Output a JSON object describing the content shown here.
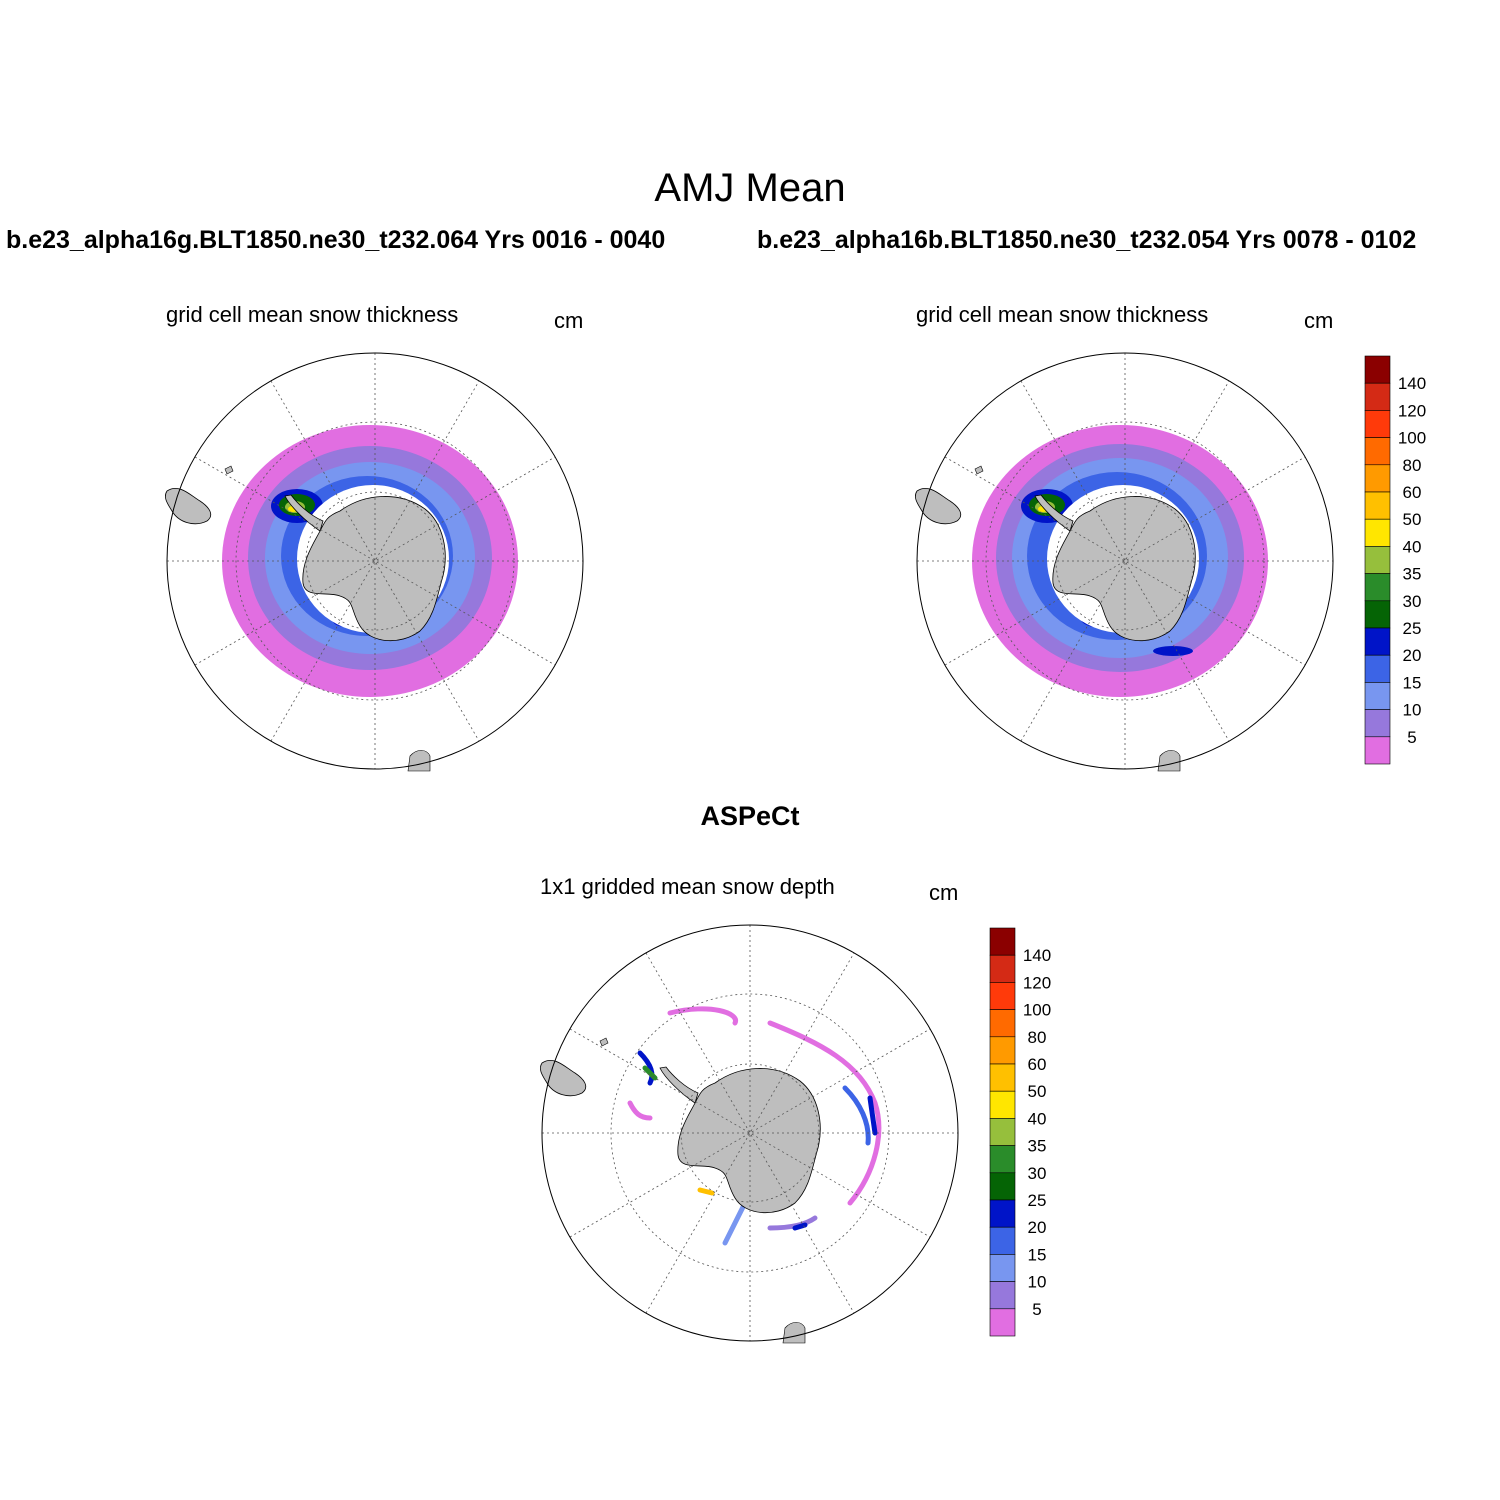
{
  "title": "AMJ Mean",
  "panels": [
    {
      "case": "b.e23_alpha16g.BLT1850.ne30_t232.064  Yrs 0016 - 0040",
      "title": "grid cell mean snow thickness",
      "units": "cm"
    },
    {
      "case": "b.e23_alpha16b.BLT1850.ne30_t232.054  Yrs 0078 - 0102",
      "title": "grid cell mean snow thickness",
      "units": "cm"
    }
  ],
  "observation": {
    "title": "ASPeCt",
    "subtitle": "1x1 gridded mean snow depth",
    "units": "cm"
  },
  "colorbar": {
    "labels": [
      "140",
      "120",
      "100",
      "80",
      "60",
      "50",
      "40",
      "35",
      "30",
      "25",
      "20",
      "15",
      "10",
      "5"
    ],
    "colors": [
      "#8b0000",
      "#d42a15",
      "#ff3a0a",
      "#ff6a00",
      "#ff9a00",
      "#ffc000",
      "#ffe600",
      "#96bf3c",
      "#2a8c2a",
      "#056405",
      "#0014c8",
      "#3c64e6",
      "#7896f0",
      "#9678dc",
      "#e16ee1"
    ]
  },
  "map_colors": {
    "land": "#bebebe",
    "ocean": "#ffffff",
    "grid": "#555555"
  }
}
